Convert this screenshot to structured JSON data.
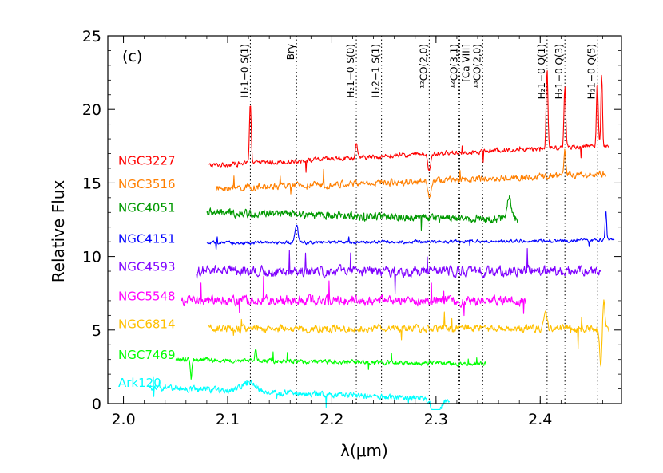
{
  "chart_data": {
    "type": "line",
    "panel_label": "(c)",
    "xlabel": "λ(μm)",
    "ylabel": "Relative Flux",
    "xlim": [
      1.985,
      2.478
    ],
    "ylim": [
      0,
      25
    ],
    "x_ticks": [
      2.0,
      2.1,
      2.2,
      2.3,
      2.4
    ],
    "x_tick_labels": [
      "2.0",
      "2.1",
      "2.2",
      "2.3",
      "2.4"
    ],
    "y_ticks": [
      0,
      5,
      10,
      15,
      20,
      25
    ],
    "y_tick_labels": [
      "0",
      "5",
      "10",
      "15",
      "20",
      "25"
    ],
    "grid": false,
    "legend": "inline labels at left of each spectrum",
    "lines": [
      {
        "label": "H₂1−0 S(1)",
        "x": 2.1218
      },
      {
        "label": "Brγ",
        "x": 2.1661
      },
      {
        "label": "H₂1−0 S(0)",
        "x": 2.2235
      },
      {
        "label": "H₂2−1 S(1)",
        "x": 2.2477
      },
      {
        "label": "¹²CO(2,0)",
        "x": 2.2935
      },
      {
        "label": "¹²CO(3,1)",
        "x": 2.3227
      },
      {
        "label": "[Ca VIII]",
        "x": 2.3213
      },
      {
        "label": "¹³CO(2,0)",
        "x": 2.3448
      },
      {
        "label": "H₂1−0 Q(1)",
        "x": 2.4066
      },
      {
        "label": "H₂1−0 Q(3)",
        "x": 2.4237
      },
      {
        "label": "H₂1−0 Q(5)",
        "x": 2.4548
      }
    ],
    "series": [
      {
        "name": "NGC3227",
        "color": "#ff0000",
        "xmin": 2.082,
        "xmax": 2.466,
        "level": 16.2,
        "slope": 1.4,
        "noise": 0.25,
        "features": [
          {
            "x": 2.1218,
            "h": 4.2,
            "w": 0.0012
          },
          {
            "x": 2.2235,
            "h": 1.0,
            "w": 0.0012
          },
          {
            "x": 2.4066,
            "h": 5.2,
            "w": 0.0012
          },
          {
            "x": 2.4237,
            "h": 4.0,
            "w": 0.0012
          },
          {
            "x": 2.4548,
            "h": 4.3,
            "w": 0.0012
          },
          {
            "x": 2.459,
            "h": 4.8,
            "w": 0.001
          },
          {
            "x": 2.2935,
            "h": -1.2,
            "w": 0.002
          }
        ]
      },
      {
        "name": "NGC3516",
        "color": "#ff7f00",
        "xmin": 2.089,
        "xmax": 2.463,
        "level": 14.6,
        "slope": 1.0,
        "noise": 0.35,
        "features": [
          {
            "x": 2.2935,
            "h": -1.0,
            "w": 0.002
          },
          {
            "x": 2.4237,
            "h": 1.8,
            "w": 0.0012
          }
        ]
      },
      {
        "name": "NGC4051",
        "color": "#009900",
        "xmin": 2.08,
        "xmax": 2.379,
        "level": 13.0,
        "slope": -0.5,
        "noise": 0.4,
        "features": [
          {
            "x": 2.37,
            "h": 1.5,
            "w": 0.003
          }
        ]
      },
      {
        "name": "NGC4151",
        "color": "#0000ff",
        "xmin": 2.08,
        "xmax": 2.471,
        "level": 10.9,
        "slope": 0.2,
        "noise": 0.18,
        "features": [
          {
            "x": 2.1661,
            "h": 1.2,
            "w": 0.002
          },
          {
            "x": 2.463,
            "h": 2.1,
            "w": 0.001
          }
        ]
      },
      {
        "name": "NGC4593",
        "color": "#7f00ff",
        "xmin": 2.07,
        "xmax": 2.458,
        "level": 9.0,
        "slope": 0.0,
        "noise": 0.55,
        "features": []
      },
      {
        "name": "NGC5548",
        "color": "#ff00ff",
        "xmin": 2.055,
        "xmax": 2.386,
        "level": 7.0,
        "slope": 0.0,
        "noise": 0.5,
        "features": []
      },
      {
        "name": "NGC6814",
        "color": "#ffc000",
        "xmin": 2.082,
        "xmax": 2.466,
        "level": 5.1,
        "slope": 0.0,
        "noise": 0.4,
        "features": [
          {
            "x": 2.405,
            "h": 1.3,
            "w": 0.002
          },
          {
            "x": 2.458,
            "h": -2.6,
            "w": 0.0015
          },
          {
            "x": 2.461,
            "h": 2.0,
            "w": 0.0012
          }
        ]
      },
      {
        "name": "NGC7469",
        "color": "#00ff00",
        "xmin": 2.05,
        "xmax": 2.348,
        "level": 3.0,
        "slope": -0.3,
        "noise": 0.22,
        "features": [
          {
            "x": 2.127,
            "h": 0.9,
            "w": 0.001
          },
          {
            "x": 2.065,
            "h": -1.2,
            "w": 0.001
          }
        ]
      },
      {
        "name": "Ark120",
        "color": "#00ffff",
        "xmin": 2.025,
        "xmax": 2.313,
        "level": 1.1,
        "slope": -0.8,
        "noise": 0.3,
        "features": [
          {
            "x": 2.12,
            "h": 0.6,
            "w": 0.01
          },
          {
            "x": 2.3,
            "h": -1.2,
            "w": 0.006
          }
        ]
      }
    ]
  }
}
